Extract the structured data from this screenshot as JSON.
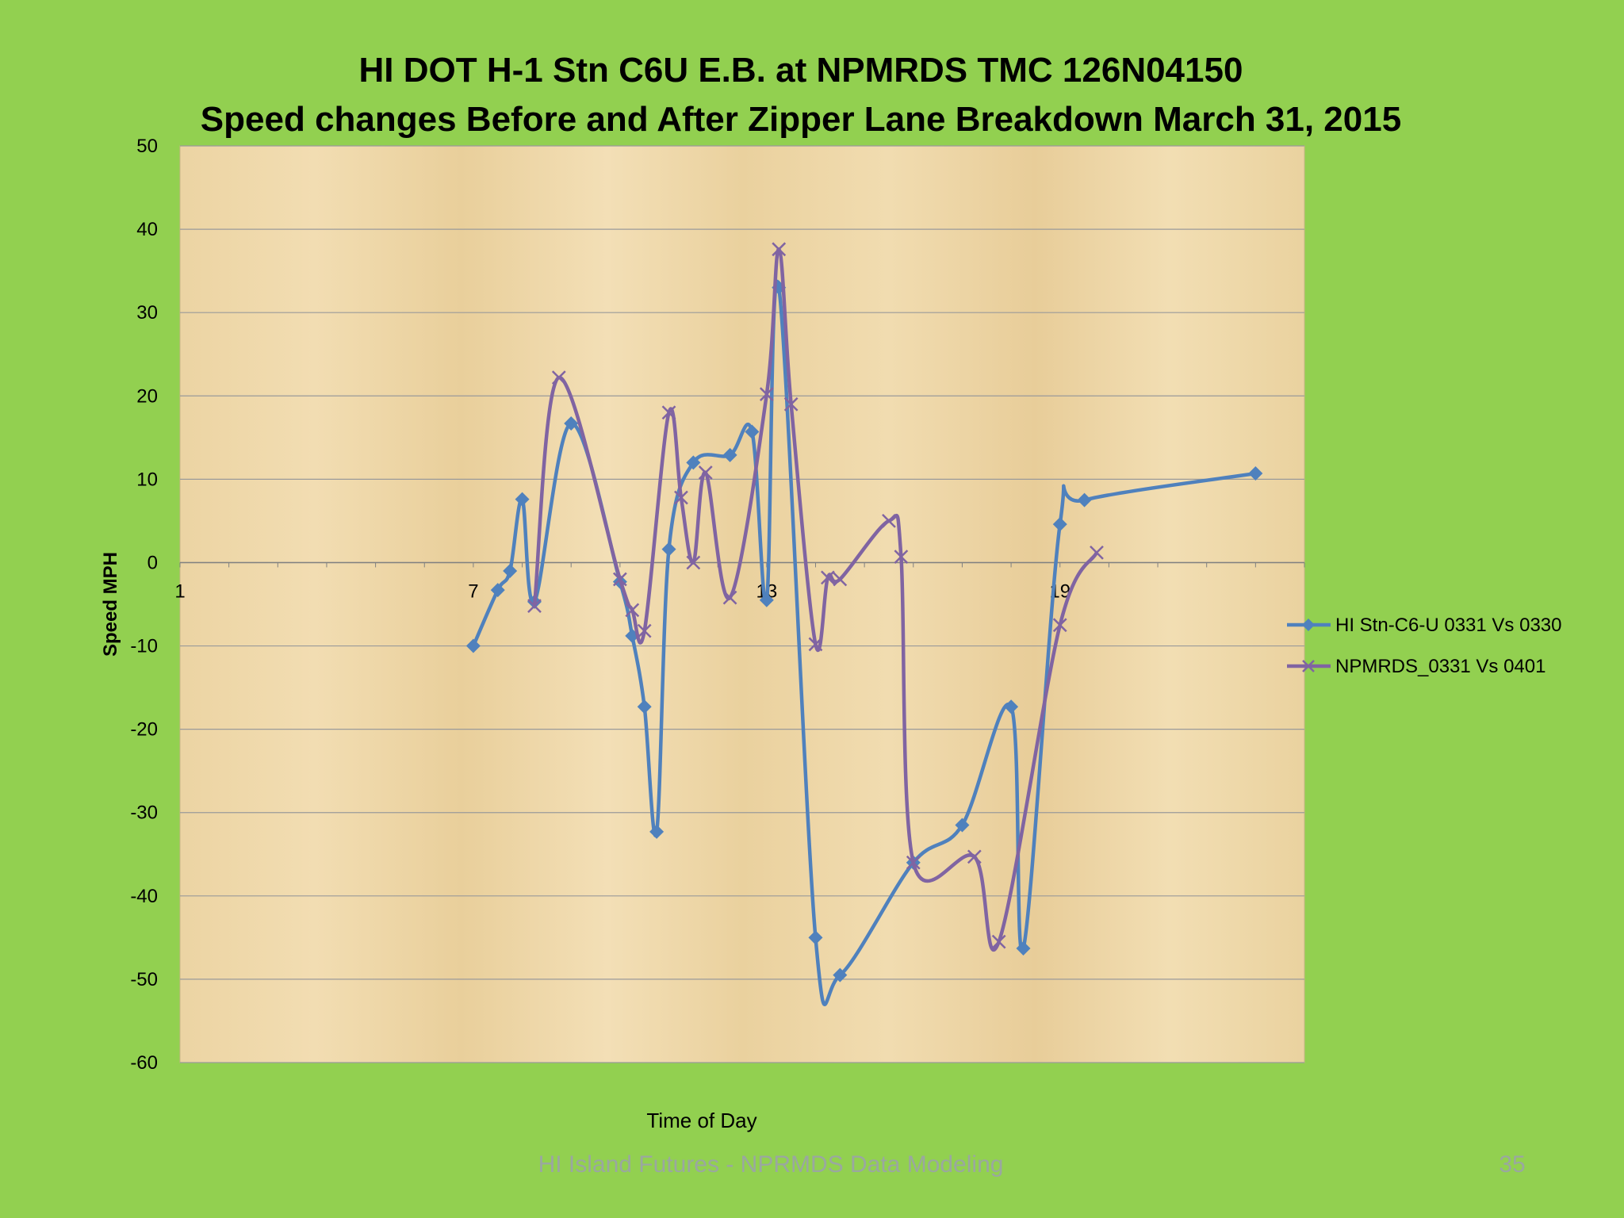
{
  "slide": {
    "footer_text": "HI Island Futures - NPRMDS Data Modeling",
    "page_number": "35"
  },
  "chart_data": {
    "type": "line",
    "title_line1": "HI DOT H-1 Stn C6U E.B. at NPMRDS TMC 126N04150",
    "title_line2": "Speed changes Before and After Zipper Lane Breakdown March 31, 2015",
    "xlabel": "Time of Day",
    "ylabel": "Speed MPH",
    "xlim": [
      1,
      24
    ],
    "ylim": [
      -60,
      50
    ],
    "x_ticks": [
      1,
      7,
      13,
      19
    ],
    "y_ticks": [
      50,
      40,
      30,
      20,
      10,
      0,
      -10,
      -20,
      -30,
      -40,
      -50,
      -60
    ],
    "grid": true,
    "legend_position": "right",
    "series": [
      {
        "name": "HI Stn-C6-U 0331 Vs 0330",
        "color": "#4f81bd",
        "marker": "diamond",
        "points": [
          [
            7.0,
            -10.0
          ],
          [
            7.5,
            -3.3
          ],
          [
            7.75,
            -1.0
          ],
          [
            8.0,
            7.6
          ],
          [
            8.25,
            -4.7
          ],
          [
            9.0,
            16.7
          ],
          [
            10.0,
            -2.3
          ],
          [
            10.25,
            -8.8
          ],
          [
            10.5,
            -17.3
          ],
          [
            10.75,
            -32.3
          ],
          [
            11.0,
            1.6
          ],
          [
            11.5,
            12.0
          ],
          [
            12.25,
            12.9
          ],
          [
            12.7,
            15.7
          ],
          [
            13.0,
            -4.5
          ],
          [
            13.25,
            33.0
          ],
          [
            14.0,
            -45.0
          ],
          [
            14.5,
            -49.5
          ],
          [
            16.0,
            -36.0
          ],
          [
            17.0,
            -31.5
          ],
          [
            18.0,
            -17.3
          ],
          [
            18.25,
            -46.3
          ],
          [
            19.0,
            4.6
          ],
          [
            19.5,
            7.5
          ],
          [
            23.0,
            10.7
          ]
        ]
      },
      {
        "name": "NPMRDS_0331 Vs 0401",
        "color": "#8064a2",
        "marker": "x",
        "points": [
          [
            8.25,
            -5.2
          ],
          [
            8.75,
            22.2
          ],
          [
            10.0,
            -2.0
          ],
          [
            10.25,
            -5.7
          ],
          [
            10.5,
            -8.2
          ],
          [
            11.0,
            18.0
          ],
          [
            11.25,
            7.8
          ],
          [
            11.5,
            0.0
          ],
          [
            11.75,
            10.8
          ],
          [
            12.25,
            -4.2
          ],
          [
            13.0,
            20.2
          ],
          [
            13.25,
            37.6
          ],
          [
            13.5,
            19.0
          ],
          [
            14.0,
            -9.8
          ],
          [
            14.25,
            -1.8
          ],
          [
            14.5,
            -2.0
          ],
          [
            15.5,
            5.0
          ],
          [
            15.75,
            0.7
          ],
          [
            16.0,
            -36.0
          ],
          [
            17.25,
            -35.3
          ],
          [
            17.75,
            -45.5
          ],
          [
            19.0,
            -7.5
          ],
          [
            19.75,
            1.2
          ]
        ]
      }
    ]
  }
}
